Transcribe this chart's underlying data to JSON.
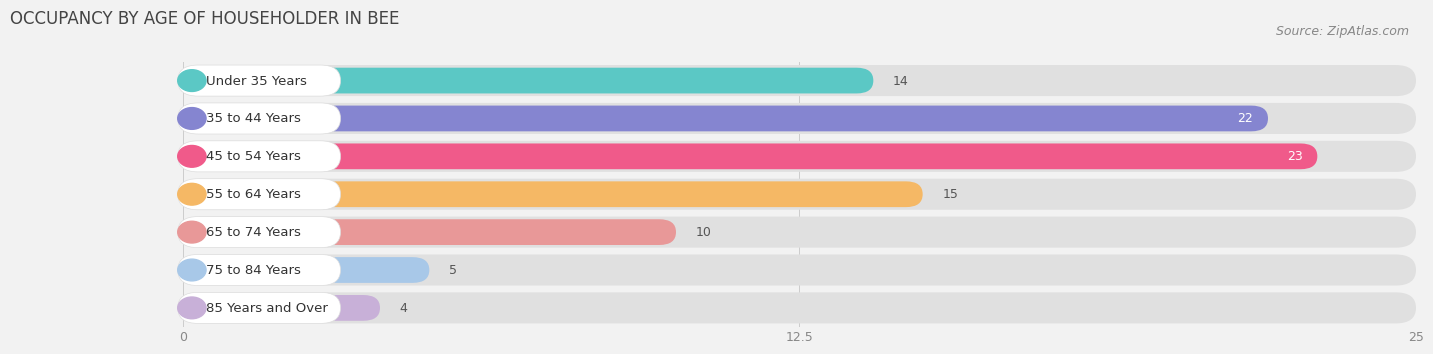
{
  "title": "OCCUPANCY BY AGE OF HOUSEHOLDER IN BEE",
  "source": "Source: ZipAtlas.com",
  "categories": [
    "Under 35 Years",
    "35 to 44 Years",
    "45 to 54 Years",
    "55 to 64 Years",
    "65 to 74 Years",
    "75 to 84 Years",
    "85 Years and Over"
  ],
  "values": [
    14,
    22,
    23,
    15,
    10,
    5,
    4
  ],
  "bar_colors": [
    "#5bc8c5",
    "#8585d0",
    "#f05a8a",
    "#f5b865",
    "#e89898",
    "#a8c8e8",
    "#c8b0d8"
  ],
  "xlim_data": [
    -3.5,
    25
  ],
  "xlim_display": [
    0,
    25
  ],
  "xticks": [
    0,
    12.5,
    25
  ],
  "background_color": "#f2f2f2",
  "bar_bg_color": "#e0e0e0",
  "title_fontsize": 12,
  "source_fontsize": 9,
  "label_fontsize": 9.5,
  "value_fontsize": 9
}
